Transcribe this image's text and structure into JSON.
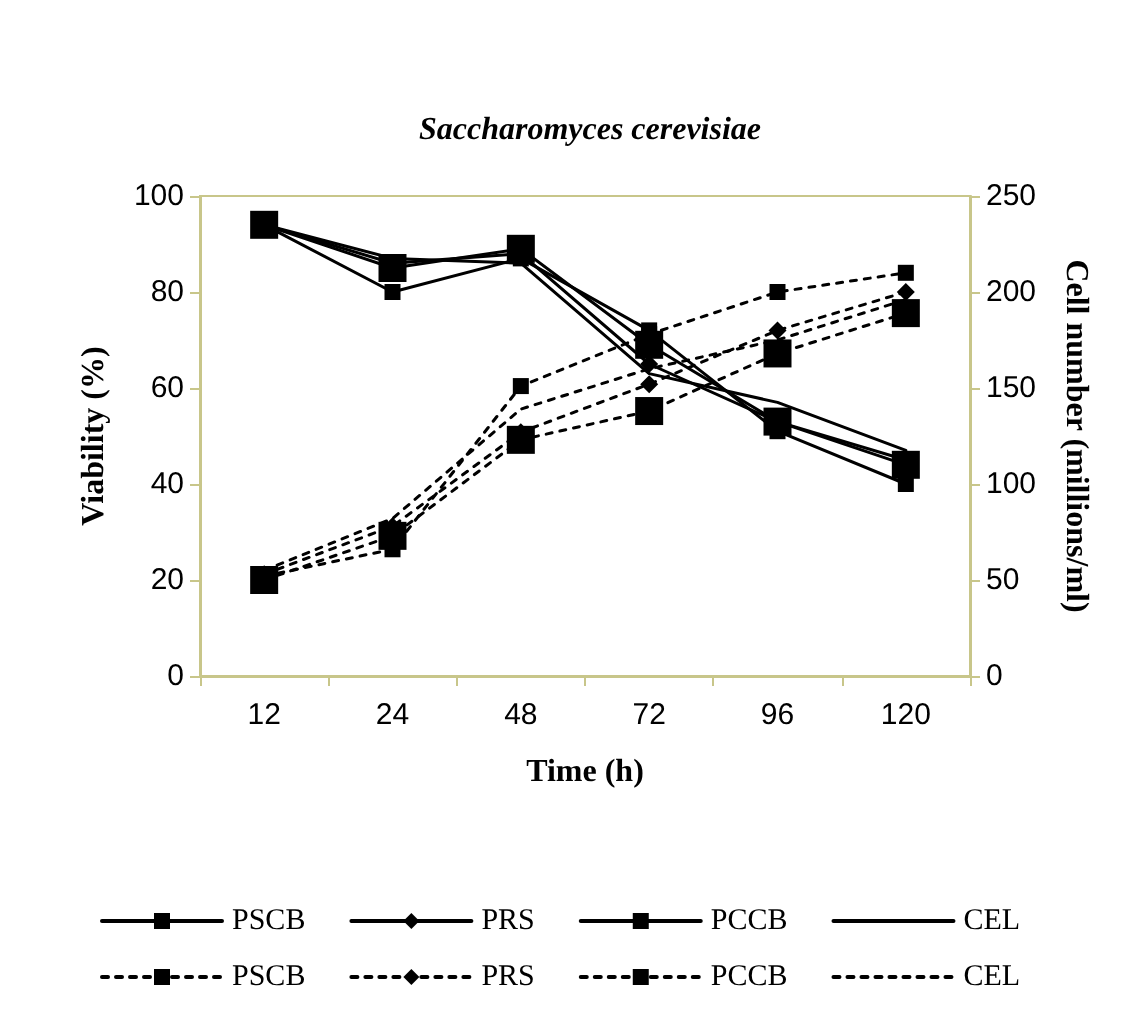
{
  "chart_data": {
    "type": "line",
    "title": "Saccharomyces cerevisiae",
    "xlabel": "Time (h)",
    "ylabel": "Viability (%)",
    "y2label": "Cell number (millions/ml)",
    "categories": [
      "12",
      "24",
      "48",
      "72",
      "96",
      "120"
    ],
    "ylim": [
      0,
      100
    ],
    "yticks": [
      0,
      20,
      40,
      60,
      80,
      100
    ],
    "y2lim": [
      0,
      250
    ],
    "y2ticks": [
      0,
      50,
      100,
      150,
      200,
      250
    ],
    "grid": false,
    "legend": "bottom",
    "series": [
      {
        "name": "PSCB",
        "color": "#000000",
        "marker": "square",
        "line_style": "solid",
        "values": [
          94,
          80,
          87,
          72,
          51,
          40
        ]
      },
      {
        "name": "PRS",
        "color": "#000000",
        "marker": "diamond",
        "line_style": "solid",
        "values": [
          94,
          86,
          88,
          65,
          53,
          45
        ]
      },
      {
        "name": "PCCB",
        "color": "#000000",
        "marker": "square",
        "line_style": "solid",
        "values": [
          94,
          85,
          89,
          69,
          53,
          44
        ]
      },
      {
        "name": "CEL",
        "color": "#000000",
        "marker": "none",
        "line_style": "solid",
        "values": [
          94,
          87,
          86,
          63,
          57,
          47
        ]
      },
      {
        "name": "PSCB",
        "color": "#000000",
        "marker": "square",
        "line_style": "dashed",
        "axis": "y2",
        "values": [
          52,
          66,
          151,
          178,
          200,
          210
        ]
      },
      {
        "name": "PRS",
        "color": "#000000",
        "marker": "diamond",
        "line_style": "dashed",
        "axis": "y2",
        "values": [
          53,
          78,
          127,
          152,
          180,
          200
        ]
      },
      {
        "name": "PCCB",
        "color": "#000000",
        "marker": "square",
        "line_style": "dashed",
        "axis": "y2",
        "values": [
          50,
          73,
          123,
          138,
          168,
          189
        ]
      },
      {
        "name": "CEL",
        "color": "#000000",
        "marker": "none",
        "line_style": "dashed",
        "axis": "y2",
        "values": [
          55,
          82,
          139,
          160,
          175,
          196
        ]
      }
    ]
  }
}
